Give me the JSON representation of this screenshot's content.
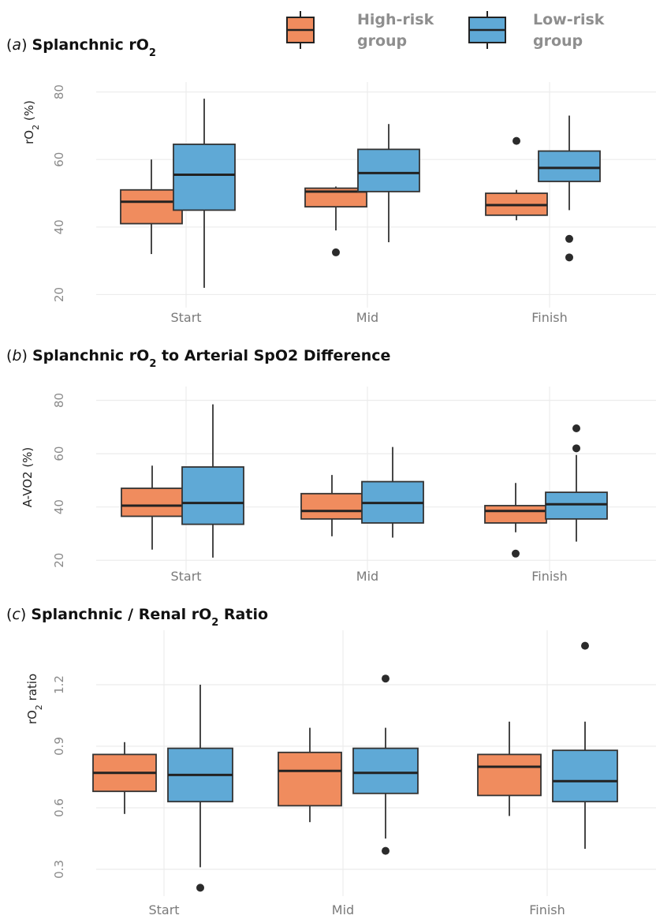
{
  "legend": {
    "items": [
      {
        "name": "High-risk group",
        "line1": "High-risk",
        "line2": "group",
        "color": "#f08c5e"
      },
      {
        "name": "Low-risk group",
        "line1": "Low-risk",
        "line2": "group",
        "color": "#5fa9d6"
      }
    ]
  },
  "chart_data": [
    {
      "type": "box",
      "panel_tag": "a",
      "title_parts": [
        "Splanchnic rO",
        "2",
        ""
      ],
      "ylabel_parts": [
        "rO",
        "2",
        " (%)"
      ],
      "categories": [
        "Start",
        "Mid",
        "Finish"
      ],
      "ylim": [
        18,
        82
      ],
      "yticks": [
        20,
        40,
        60,
        80
      ],
      "tick_labels": [
        "20",
        "40",
        "60",
        "80"
      ],
      "grid": true,
      "legend_position": "top",
      "series": [
        {
          "name": "High-risk group",
          "color": "#f08c5e",
          "boxes": [
            {
              "whislo": 32,
              "q1": 41,
              "med": 47.5,
              "q3": 51,
              "whishi": 60,
              "fliers": []
            },
            {
              "whislo": 39,
              "q1": 46,
              "med": 50.5,
              "q3": 51.5,
              "whishi": 52,
              "fliers": [
                32.5
              ]
            },
            {
              "whislo": 42,
              "q1": 43.5,
              "med": 46.5,
              "q3": 50,
              "whishi": 51,
              "fliers": [
                65.5
              ]
            }
          ]
        },
        {
          "name": "Low-risk group",
          "color": "#5fa9d6",
          "boxes": [
            {
              "whislo": 22,
              "q1": 45,
              "med": 55.5,
              "q3": 64.5,
              "whishi": 78,
              "fliers": []
            },
            {
              "whislo": 35.5,
              "q1": 50.5,
              "med": 56,
              "q3": 63,
              "whishi": 70.5,
              "fliers": []
            },
            {
              "whislo": 45,
              "q1": 53.5,
              "med": 57.5,
              "q3": 62.5,
              "whishi": 73,
              "fliers": [
                36.5,
                31
              ]
            }
          ]
        }
      ]
    },
    {
      "type": "box",
      "panel_tag": "b",
      "title_parts": [
        "Splanchnic rO",
        "2",
        " to Arterial SpO2 Difference"
      ],
      "ylabel_parts": [
        "A-VO2 (%)"
      ],
      "categories": [
        "Start",
        "Mid",
        "Finish"
      ],
      "ylim": [
        18,
        84
      ],
      "yticks": [
        20,
        40,
        60,
        80
      ],
      "tick_labels": [
        "20",
        "40",
        "60",
        "80"
      ],
      "grid": true,
      "series": [
        {
          "name": "High-risk group",
          "color": "#f08c5e",
          "boxes": [
            {
              "whislo": 24,
              "q1": 36.5,
              "med": 40.5,
              "q3": 47,
              "whishi": 55.5,
              "fliers": []
            },
            {
              "whislo": 29,
              "q1": 35.5,
              "med": 38.5,
              "q3": 45,
              "whishi": 52,
              "fliers": []
            },
            {
              "whislo": 30.5,
              "q1": 34,
              "med": 38.5,
              "q3": 40.5,
              "whishi": 49,
              "fliers": [
                22.5
              ]
            }
          ]
        },
        {
          "name": "Low-risk group",
          "color": "#5fa9d6",
          "boxes": [
            {
              "whislo": 21,
              "q1": 33.5,
              "med": 41.5,
              "q3": 55,
              "whishi": 78.5,
              "fliers": []
            },
            {
              "whislo": 28.5,
              "q1": 34,
              "med": 41.5,
              "q3": 49.5,
              "whishi": 62.5,
              "fliers": []
            },
            {
              "whislo": 27,
              "q1": 35.5,
              "med": 41,
              "q3": 45.5,
              "whishi": 59.5,
              "fliers": [
                62,
                69.5
              ]
            }
          ]
        }
      ]
    },
    {
      "type": "box",
      "panel_tag": "c",
      "title_parts": [
        "Splanchnic / Renal rO",
        "2",
        " Ratio"
      ],
      "ylabel_parts": [
        "rO",
        "2",
        " ratio"
      ],
      "categories": [
        "Start",
        "Mid",
        "Finish"
      ],
      "ylim": [
        0.2,
        1.45
      ],
      "yticks": [
        0.3,
        0.6,
        0.9,
        1.2
      ],
      "tick_labels": [
        "0.3",
        "0.6",
        "0.9",
        "1.2"
      ],
      "grid": true,
      "series": [
        {
          "name": "High-risk group",
          "color": "#f08c5e",
          "boxes": [
            {
              "whislo": 0.57,
              "q1": 0.68,
              "med": 0.77,
              "q3": 0.86,
              "whishi": 0.92,
              "fliers": []
            },
            {
              "whislo": 0.53,
              "q1": 0.61,
              "med": 0.78,
              "q3": 0.87,
              "whishi": 0.99,
              "fliers": []
            },
            {
              "whislo": 0.56,
              "q1": 0.66,
              "med": 0.8,
              "q3": 0.86,
              "whishi": 1.02,
              "fliers": []
            }
          ]
        },
        {
          "name": "Low-risk group",
          "color": "#5fa9d6",
          "boxes": [
            {
              "whislo": 0.31,
              "q1": 0.63,
              "med": 0.76,
              "q3": 0.89,
              "whishi": 1.2,
              "fliers": [
                0.21
              ]
            },
            {
              "whislo": 0.45,
              "q1": 0.67,
              "med": 0.77,
              "q3": 0.89,
              "whishi": 0.99,
              "fliers": [
                1.23,
                0.39
              ]
            },
            {
              "whislo": 0.4,
              "q1": 0.63,
              "med": 0.73,
              "q3": 0.88,
              "whishi": 1.02,
              "fliers": [
                1.39
              ]
            }
          ]
        }
      ]
    }
  ]
}
